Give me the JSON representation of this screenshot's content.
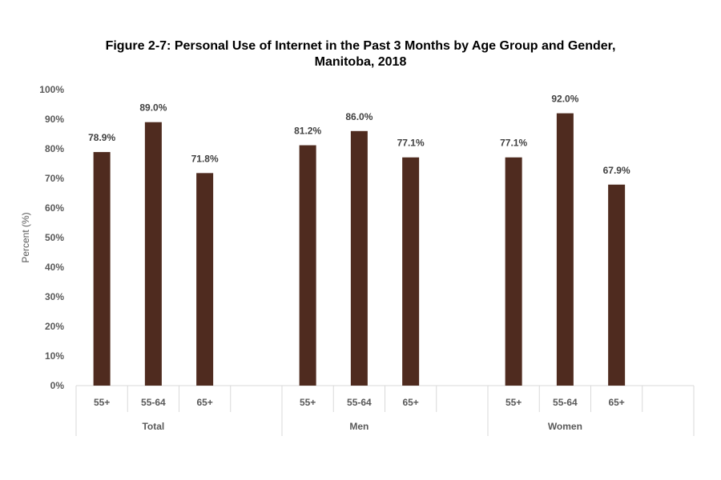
{
  "chart_data": {
    "type": "bar",
    "title_line1": "Figure 2-7: Personal Use of Internet in the Past 3 Months by Age Group and Gender,",
    "title_line2": "Manitoba, 2018",
    "ylabel": "Percent (%)",
    "ylim": [
      0,
      100
    ],
    "yticks": [
      "0%",
      "10%",
      "20%",
      "30%",
      "40%",
      "50%",
      "60%",
      "70%",
      "80%",
      "90%",
      "100%"
    ],
    "grid": false,
    "legend": "none",
    "bar_color": "#4f2b1f",
    "groups": [
      {
        "name": "Total",
        "categories": [
          "55+",
          "55-64",
          "65+"
        ],
        "values": [
          78.9,
          89.0,
          71.8
        ],
        "labels": [
          "78.9%",
          "89.0%",
          "71.8%"
        ]
      },
      {
        "name": "Men",
        "categories": [
          "55+",
          "55-64",
          "65+"
        ],
        "values": [
          81.2,
          86.0,
          77.1
        ],
        "labels": [
          "81.2%",
          "86.0%",
          "77.1%"
        ]
      },
      {
        "name": "Women",
        "categories": [
          "55+",
          "55-64",
          "65+"
        ],
        "values": [
          77.1,
          92.0,
          67.9
        ],
        "labels": [
          "77.1%",
          "92.0%",
          "67.9%"
        ]
      }
    ]
  }
}
